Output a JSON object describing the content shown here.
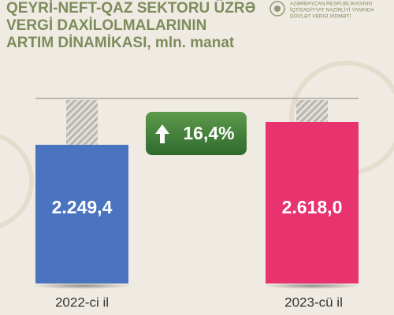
{
  "chart_data": {
    "type": "bar",
    "title": [
      "QEYRİ-NEFT-QAZ SEKTORU ÜZRƏ",
      "VERGİ DAXİLOLMALARININ",
      "ARTIM DİNAMİKASI, mln. manat"
    ],
    "organization": [
      "AZƏRBAYCAN RESPUBLİKASININ",
      "İQTİSADİYYAT NAZİRLİYİ YANINDA",
      "DÖVLƏT VERGİ XİDMƏTİ"
    ],
    "categories": [
      "2022-ci il",
      "2023-cü il"
    ],
    "values": [
      2249.4,
      2618.0
    ],
    "value_labels": [
      "2.249,4",
      "2.618,0"
    ],
    "colors": [
      "#4a74c0",
      "#e8336e"
    ],
    "annotation": "16,4%"
  }
}
